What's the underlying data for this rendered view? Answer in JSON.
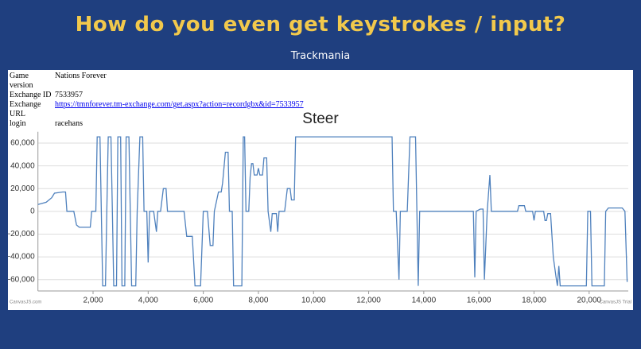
{
  "header": {
    "title": "How do you even get keystrokes / input?",
    "subtitle": "Trackmania"
  },
  "table": {
    "rows": [
      [
        "Game version",
        "Nations Forever"
      ],
      [
        "Exchange ID",
        "7533957"
      ],
      [
        "Exchange URL",
        "https://tmnforever.tm-exchange.com/get.aspx?action=recordgbx&id=7533957"
      ],
      [
        "login",
        "racehans"
      ]
    ]
  },
  "chart_data": {
    "type": "line",
    "title": "Steer",
    "credit": "CanvasJS.com",
    "trial": "CanvasJS Trial",
    "xlim": [
      0,
      21420
    ],
    "ylim": [
      -70000,
      70000
    ],
    "xticks": [
      {
        "value": 2000,
        "label": "2,000"
      },
      {
        "value": 4000,
        "label": "4,000"
      },
      {
        "value": 6000,
        "label": "6,000"
      },
      {
        "value": 8000,
        "label": "8,000"
      },
      {
        "value": 10000,
        "label": "10,000"
      },
      {
        "value": 12000,
        "label": "12,000"
      },
      {
        "value": 14000,
        "label": "14,000"
      },
      {
        "value": 16000,
        "label": "16,000"
      },
      {
        "value": 18000,
        "label": "18,000"
      },
      {
        "value": 20000,
        "label": "20,000"
      }
    ],
    "yticks": [
      {
        "value": -60000,
        "label": "-60,000"
      },
      {
        "value": -40000,
        "label": "-40,000"
      },
      {
        "value": -20000,
        "label": "-20,000"
      },
      0,
      {
        "value": 20000,
        "label": "20,000"
      },
      {
        "value": 40000,
        "label": "40,000"
      },
      {
        "value": 60000,
        "label": "60,000"
      }
    ],
    "grid": true,
    "x": [
      0,
      300,
      500,
      600,
      900,
      1000,
      1050,
      1300,
      1400,
      1500,
      1900,
      1950,
      2100,
      2150,
      2250,
      2300,
      2350,
      2450,
      2500,
      2550,
      2650,
      2700,
      2750,
      2850,
      2900,
      3000,
      3050,
      3150,
      3200,
      3300,
      3400,
      3550,
      3600,
      3700,
      3800,
      3850,
      3950,
      4000,
      4050,
      4200,
      4300,
      4350,
      4450,
      4550,
      4650,
      4700,
      5300,
      5400,
      5600,
      5700,
      5900,
      6000,
      6150,
      6250,
      6350,
      6400,
      6550,
      6650,
      6700,
      6800,
      6900,
      6950,
      7050,
      7100,
      7400,
      7450,
      7500,
      7550,
      7650,
      7700,
      7750,
      7800,
      7850,
      7950,
      8000,
      8050,
      8150,
      8200,
      8300,
      8350,
      8450,
      8500,
      8650,
      8700,
      8750,
      8950,
      9050,
      9150,
      9200,
      9300,
      9350,
      12850,
      12900,
      13000,
      13100,
      13150,
      13400,
      13500,
      13700,
      13750,
      13800,
      13850,
      15800,
      15850,
      15900,
      16050,
      16150,
      16200,
      16300,
      16400,
      16450,
      17400,
      17450,
      17650,
      17700,
      17950,
      18000,
      18050,
      18350,
      18400,
      18450,
      18500,
      18600,
      18700,
      18800,
      18850,
      18900,
      18950,
      19900,
      19950,
      20050,
      20100,
      20550,
      20600,
      20700,
      21200,
      21300,
      21380
    ],
    "series": [
      {
        "name": "Steer",
        "color": "#4f81bd",
        "values": [
          6000,
          8000,
          12000,
          16000,
          17000,
          17000,
          0,
          0,
          -12000,
          -14000,
          -14000,
          0,
          0,
          65536,
          65536,
          0,
          -65536,
          -65536,
          0,
          65536,
          65536,
          0,
          -65536,
          -65536,
          65536,
          65536,
          -65536,
          -65536,
          65536,
          65536,
          -65536,
          -65536,
          0,
          65536,
          65536,
          0,
          0,
          -45000,
          0,
          0,
          -18000,
          0,
          0,
          20000,
          20000,
          0,
          0,
          -22000,
          -22000,
          -65536,
          -65536,
          0,
          0,
          -30000,
          -30000,
          0,
          17000,
          17000,
          25000,
          52000,
          52000,
          0,
          0,
          -65536,
          -65536,
          65536,
          65536,
          0,
          0,
          30000,
          42000,
          42000,
          32000,
          32000,
          38000,
          32000,
          32000,
          47000,
          47000,
          0,
          -18000,
          -2000,
          -2000,
          -18000,
          0,
          0,
          20000,
          20000,
          10000,
          10000,
          65536,
          65536,
          0,
          0,
          -60000,
          0,
          0,
          65536,
          65536,
          0,
          -65536,
          0,
          0,
          -58000,
          0,
          2000,
          2000,
          -60000,
          0,
          32000,
          0,
          0,
          5000,
          5000,
          0,
          0,
          -8000,
          0,
          0,
          -8000,
          -8000,
          -2000,
          -2000,
          -40000,
          -58000,
          -65536,
          -48000,
          -65536,
          -65536,
          0,
          0,
          -65536,
          -65536,
          0,
          3000,
          3000,
          0,
          -62000
        ]
      }
    ]
  }
}
